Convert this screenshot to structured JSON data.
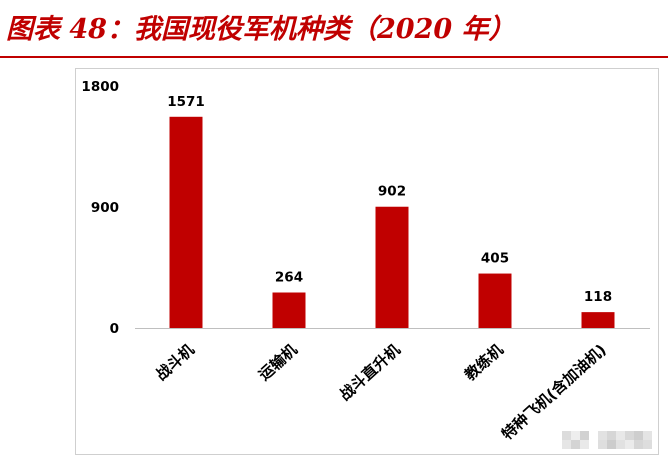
{
  "colors": {
    "title": "#c00000",
    "rule": "#c00000",
    "bar": "#c00000",
    "axis": "#bfbfbf"
  },
  "chart_data": {
    "type": "bar",
    "title": "图表 48：我国现役军机种类（2020 年）",
    "categories": [
      "战斗机",
      "运输机",
      "战斗直升机",
      "教练机",
      "特种飞机(含加油机)"
    ],
    "values": [
      1571,
      264,
      902,
      405,
      118
    ],
    "ylim": [
      0,
      1800
    ],
    "yticks": [
      0,
      900,
      1800
    ],
    "data_labels": true,
    "grid": false,
    "legend": "none"
  }
}
